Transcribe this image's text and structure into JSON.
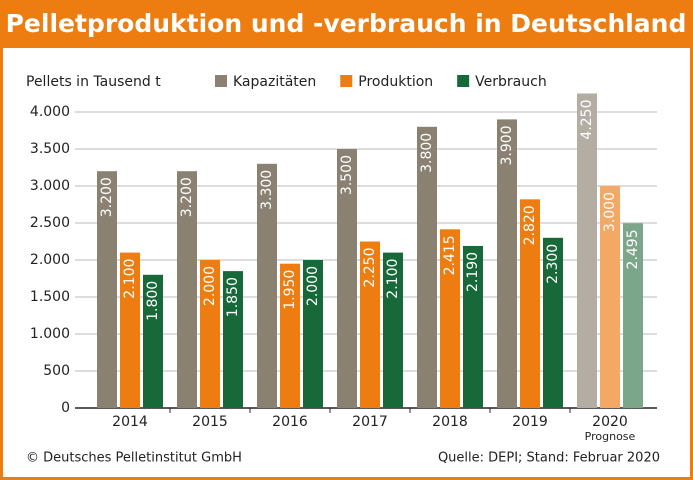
{
  "chart_data": {
    "type": "bar",
    "title": "Pelletproduktion und -verbrauch in Deutschland",
    "y_label": "Pellets in Tausend t",
    "categories": [
      "2014",
      "2015",
      "2016",
      "2017",
      "2018",
      "2019",
      "2020"
    ],
    "category_note": "Prognose",
    "series": [
      {
        "name": "Kapazitäten",
        "color": "#8a8173",
        "colors": [
          "#8a8173",
          "#8a8173",
          "#8a8173",
          "#8a8173",
          "#8a8173",
          "#8a8173",
          "#b3ada4"
        ],
        "values": [
          3200,
          3200,
          3300,
          3500,
          3800,
          3900,
          4250
        ],
        "value_labels": [
          "3.200",
          "3.200",
          "3.300",
          "3.500",
          "3.800",
          "3.900",
          "4.250"
        ]
      },
      {
        "name": "Produktion",
        "color": "#ee7d11",
        "colors": [
          "#ee7d11",
          "#ee7d11",
          "#ee7d11",
          "#ee7d11",
          "#ee7d11",
          "#ee7d11",
          "#f4a866"
        ],
        "values": [
          2100,
          2000,
          1950,
          2250,
          2415,
          2820,
          3000
        ],
        "value_labels": [
          "2.100",
          "2.000",
          "1.950",
          "2.250",
          "2.415",
          "2.820",
          "3.000"
        ]
      },
      {
        "name": "Verbrauch",
        "color": "#17693a",
        "colors": [
          "#17693a",
          "#17693a",
          "#17693a",
          "#17693a",
          "#17693a",
          "#17693a",
          "#7ba68a"
        ],
        "values": [
          1800,
          1850,
          2000,
          2100,
          2190,
          2300,
          2495
        ],
        "value_labels": [
          "1.800",
          "1.850",
          "2.000",
          "2.100",
          "2.190",
          "2.300",
          "2.495"
        ]
      }
    ],
    "ylim": [
      0,
      4000
    ],
    "yticks": [
      0,
      500,
      {
        "value": 1000,
        "label": "1.000"
      },
      {
        "value": 1500,
        "label": "1.500"
      },
      {
        "value": 2000,
        "label": "2.000"
      },
      {
        "value": 2500,
        "label": "2.500"
      },
      {
        "value": 3000,
        "label": "3.000"
      },
      {
        "value": 3500,
        "label": "3.500"
      },
      {
        "value": 4000,
        "label": "4.000"
      }
    ],
    "grid": true,
    "legend": "top",
    "copyright": "© Deutsches Pelletinstitut GmbH",
    "source": "Quelle: DEPI; Stand: Februar 2020"
  }
}
